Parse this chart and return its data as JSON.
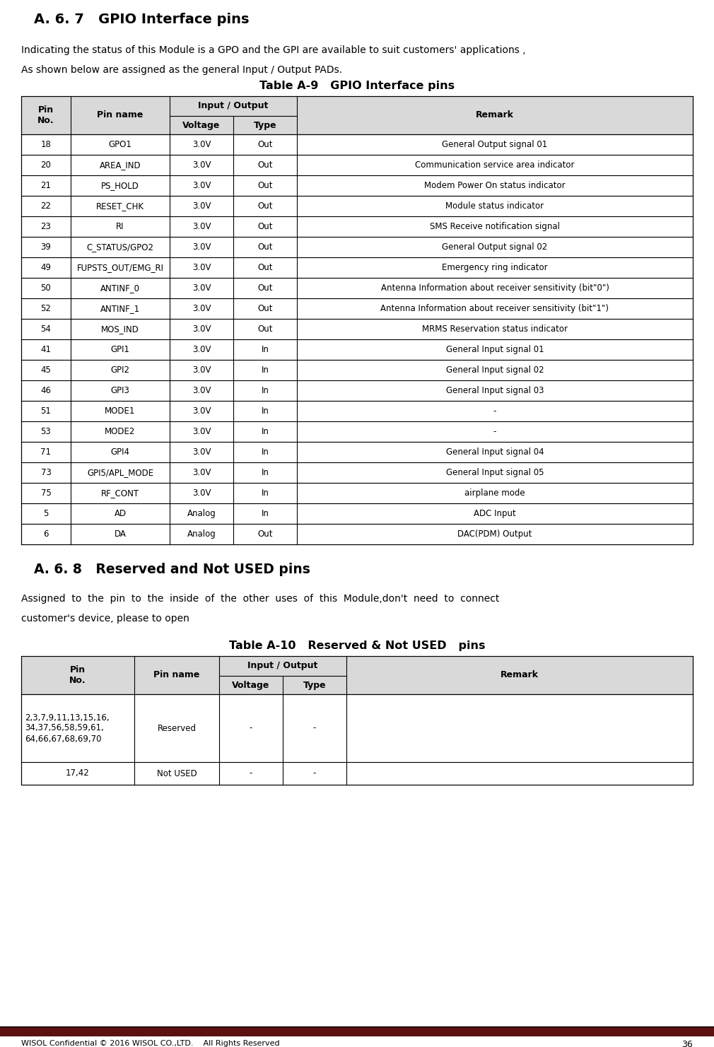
{
  "section1_title": "A. 6. 7   GPIO Interface pins",
  "section1_body1": "Indicating the status of this Module is a GPO and the GPI are available to suit customers' applications ,",
  "section1_body2": "As shown below are assigned as the general Input / Output PADs.",
  "table1_title": "Table A-9   GPIO Interface pins",
  "table1_rows": [
    [
      "18",
      "GPO1",
      "3.0V",
      "Out",
      "General Output signal 01"
    ],
    [
      "20",
      "AREA_IND",
      "3.0V",
      "Out",
      "Communication service area indicator"
    ],
    [
      "21",
      "PS_HOLD",
      "3.0V",
      "Out",
      "Modem Power On status indicator"
    ],
    [
      "22",
      "RESET_CHK",
      "3.0V",
      "Out",
      "Module status indicator"
    ],
    [
      "23",
      "RI",
      "3.0V",
      "Out",
      "SMS Receive notification signal"
    ],
    [
      "39",
      "C_STATUS/GPO2",
      "3.0V",
      "Out",
      "General Output signal 02"
    ],
    [
      "49",
      "FUPSTS_OUT/EMG_RI",
      "3.0V",
      "Out",
      "Emergency ring indicator"
    ],
    [
      "50",
      "ANTINF_0",
      "3.0V",
      "Out",
      "Antenna Information about receiver sensitivity (bit\"0\")"
    ],
    [
      "52",
      "ANTINF_1",
      "3.0V",
      "Out",
      "Antenna Information about receiver sensitivity (bit\"1\")"
    ],
    [
      "54",
      "MOS_IND",
      "3.0V",
      "Out",
      "MRMS Reservation status indicator"
    ],
    [
      "41",
      "GPI1",
      "3.0V",
      "In",
      "General Input signal 01"
    ],
    [
      "45",
      "GPI2",
      "3.0V",
      "In",
      "General Input signal 02"
    ],
    [
      "46",
      "GPI3",
      "3.0V",
      "In",
      "General Input signal 03"
    ],
    [
      "51",
      "MODE1",
      "3.0V",
      "In",
      "-"
    ],
    [
      "53",
      "MODE2",
      "3.0V",
      "In",
      "-"
    ],
    [
      "71",
      "GPI4",
      "3.0V",
      "In",
      "General Input signal 04"
    ],
    [
      "73",
      "GPI5/APL_MODE",
      "3.0V",
      "In",
      "General Input signal 05"
    ],
    [
      "75",
      "RF_CONT",
      "3.0V",
      "In",
      "airplane mode"
    ],
    [
      "5",
      "AD",
      "Analog",
      "In",
      "ADC Input"
    ],
    [
      "6",
      "DA",
      "Analog",
      "Out",
      "DAC(PDM) Output"
    ]
  ],
  "section2_title": "A. 6. 8   Reserved and Not USED pins",
  "section2_body1": "Assigned  to  the  pin  to  the  inside  of  the  other  uses  of  this  Module,don't  need  to  connect",
  "section2_body2": "customer's device, please to open",
  "table2_title": "Table A-10   Reserved & Not USED   pins",
  "table2_rows": [
    [
      "2,3,7,9,11,13,15,16,\n34,37,56,58,59,61,\n64,66,67,68,69,70",
      "Reserved",
      "-",
      "-",
      ""
    ],
    [
      "17,42",
      "Not USED",
      "-",
      "-",
      ""
    ]
  ],
  "footer_text": "WISOL Confidential © 2016 WISOL CO.,LTD.    All Rights Reserved",
  "footer_page": "36",
  "footer_bar_color": "#5c1010",
  "bg_color": "#ffffff",
  "border_color": "#000000",
  "header_bg": "#d9d9d9"
}
